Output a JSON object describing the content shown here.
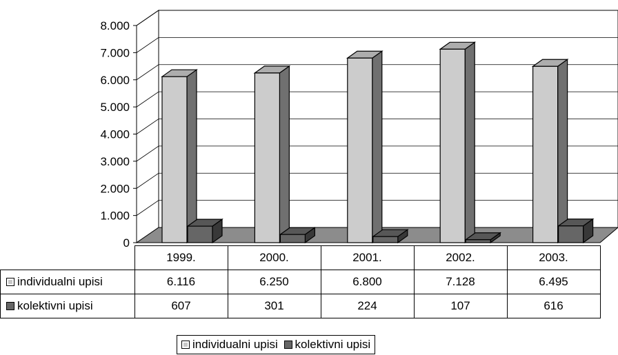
{
  "chart_data": {
    "type": "bar",
    "categories": [
      "1999.",
      "2000.",
      "2001.",
      "2002.",
      "2003."
    ],
    "series": [
      {
        "name": "individualni upisi",
        "values": [
          6116,
          6250,
          6800,
          7128,
          6495
        ],
        "labels": [
          "6.116",
          "6.250",
          "6.800",
          "7.128",
          "6.495"
        ],
        "color": "#cccccc"
      },
      {
        "name": "kolektivni upisi",
        "values": [
          607,
          301,
          224,
          107,
          616
        ],
        "labels": [
          "607",
          "301",
          "224",
          "107",
          "616"
        ],
        "color": "#666666"
      }
    ],
    "yticks": [
      "0",
      "1.000",
      "2.000",
      "3.000",
      "4.000",
      "5.000",
      "6.000",
      "7.000",
      "8.000"
    ],
    "ylim": [
      0,
      8000
    ],
    "grid": true,
    "data_table": true,
    "legend": "bottom",
    "style": "3d-column"
  }
}
